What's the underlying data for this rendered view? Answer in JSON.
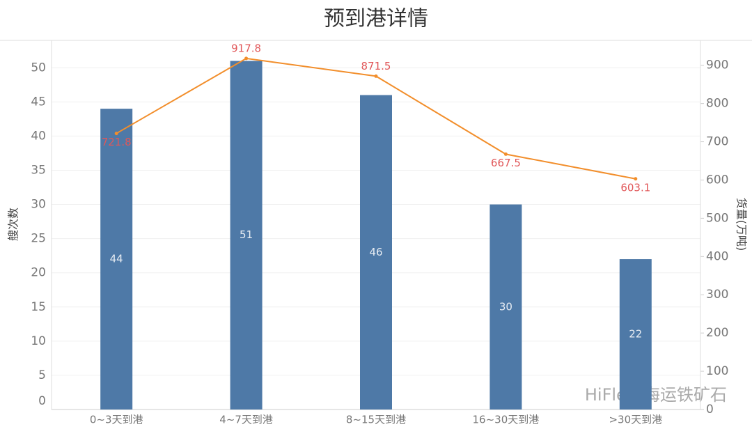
{
  "chart_data": {
    "type": "bar-line",
    "title": "预到港详情",
    "categories": [
      "0~3天到港",
      "4~7天到港",
      "8~15天到港",
      "16~30天到港",
      ">30天到港"
    ],
    "series": [
      {
        "type": "bar",
        "color": "#4e79a7",
        "values": [
          44,
          51,
          46,
          30,
          22
        ]
      },
      {
        "type": "line",
        "axis": "y2",
        "color": "#f28e2b",
        "label_color": "#e15759",
        "values": [
          721.8,
          917.8,
          871.5,
          667.5,
          603.1
        ]
      }
    ],
    "y_label": "艘次数",
    "y2_label": "货量(万吨)",
    "ylim": [
      0,
      54
    ],
    "yticks": [
      0,
      5,
      10,
      15,
      20,
      25,
      30,
      35,
      40,
      45,
      50
    ],
    "y2lim": [
      0,
      965
    ],
    "y2ticks": [
      0,
      100,
      200,
      300,
      400,
      500,
      600,
      700,
      800,
      900
    ],
    "grid": true,
    "watermark": "HiFleet海运铁矿石"
  }
}
